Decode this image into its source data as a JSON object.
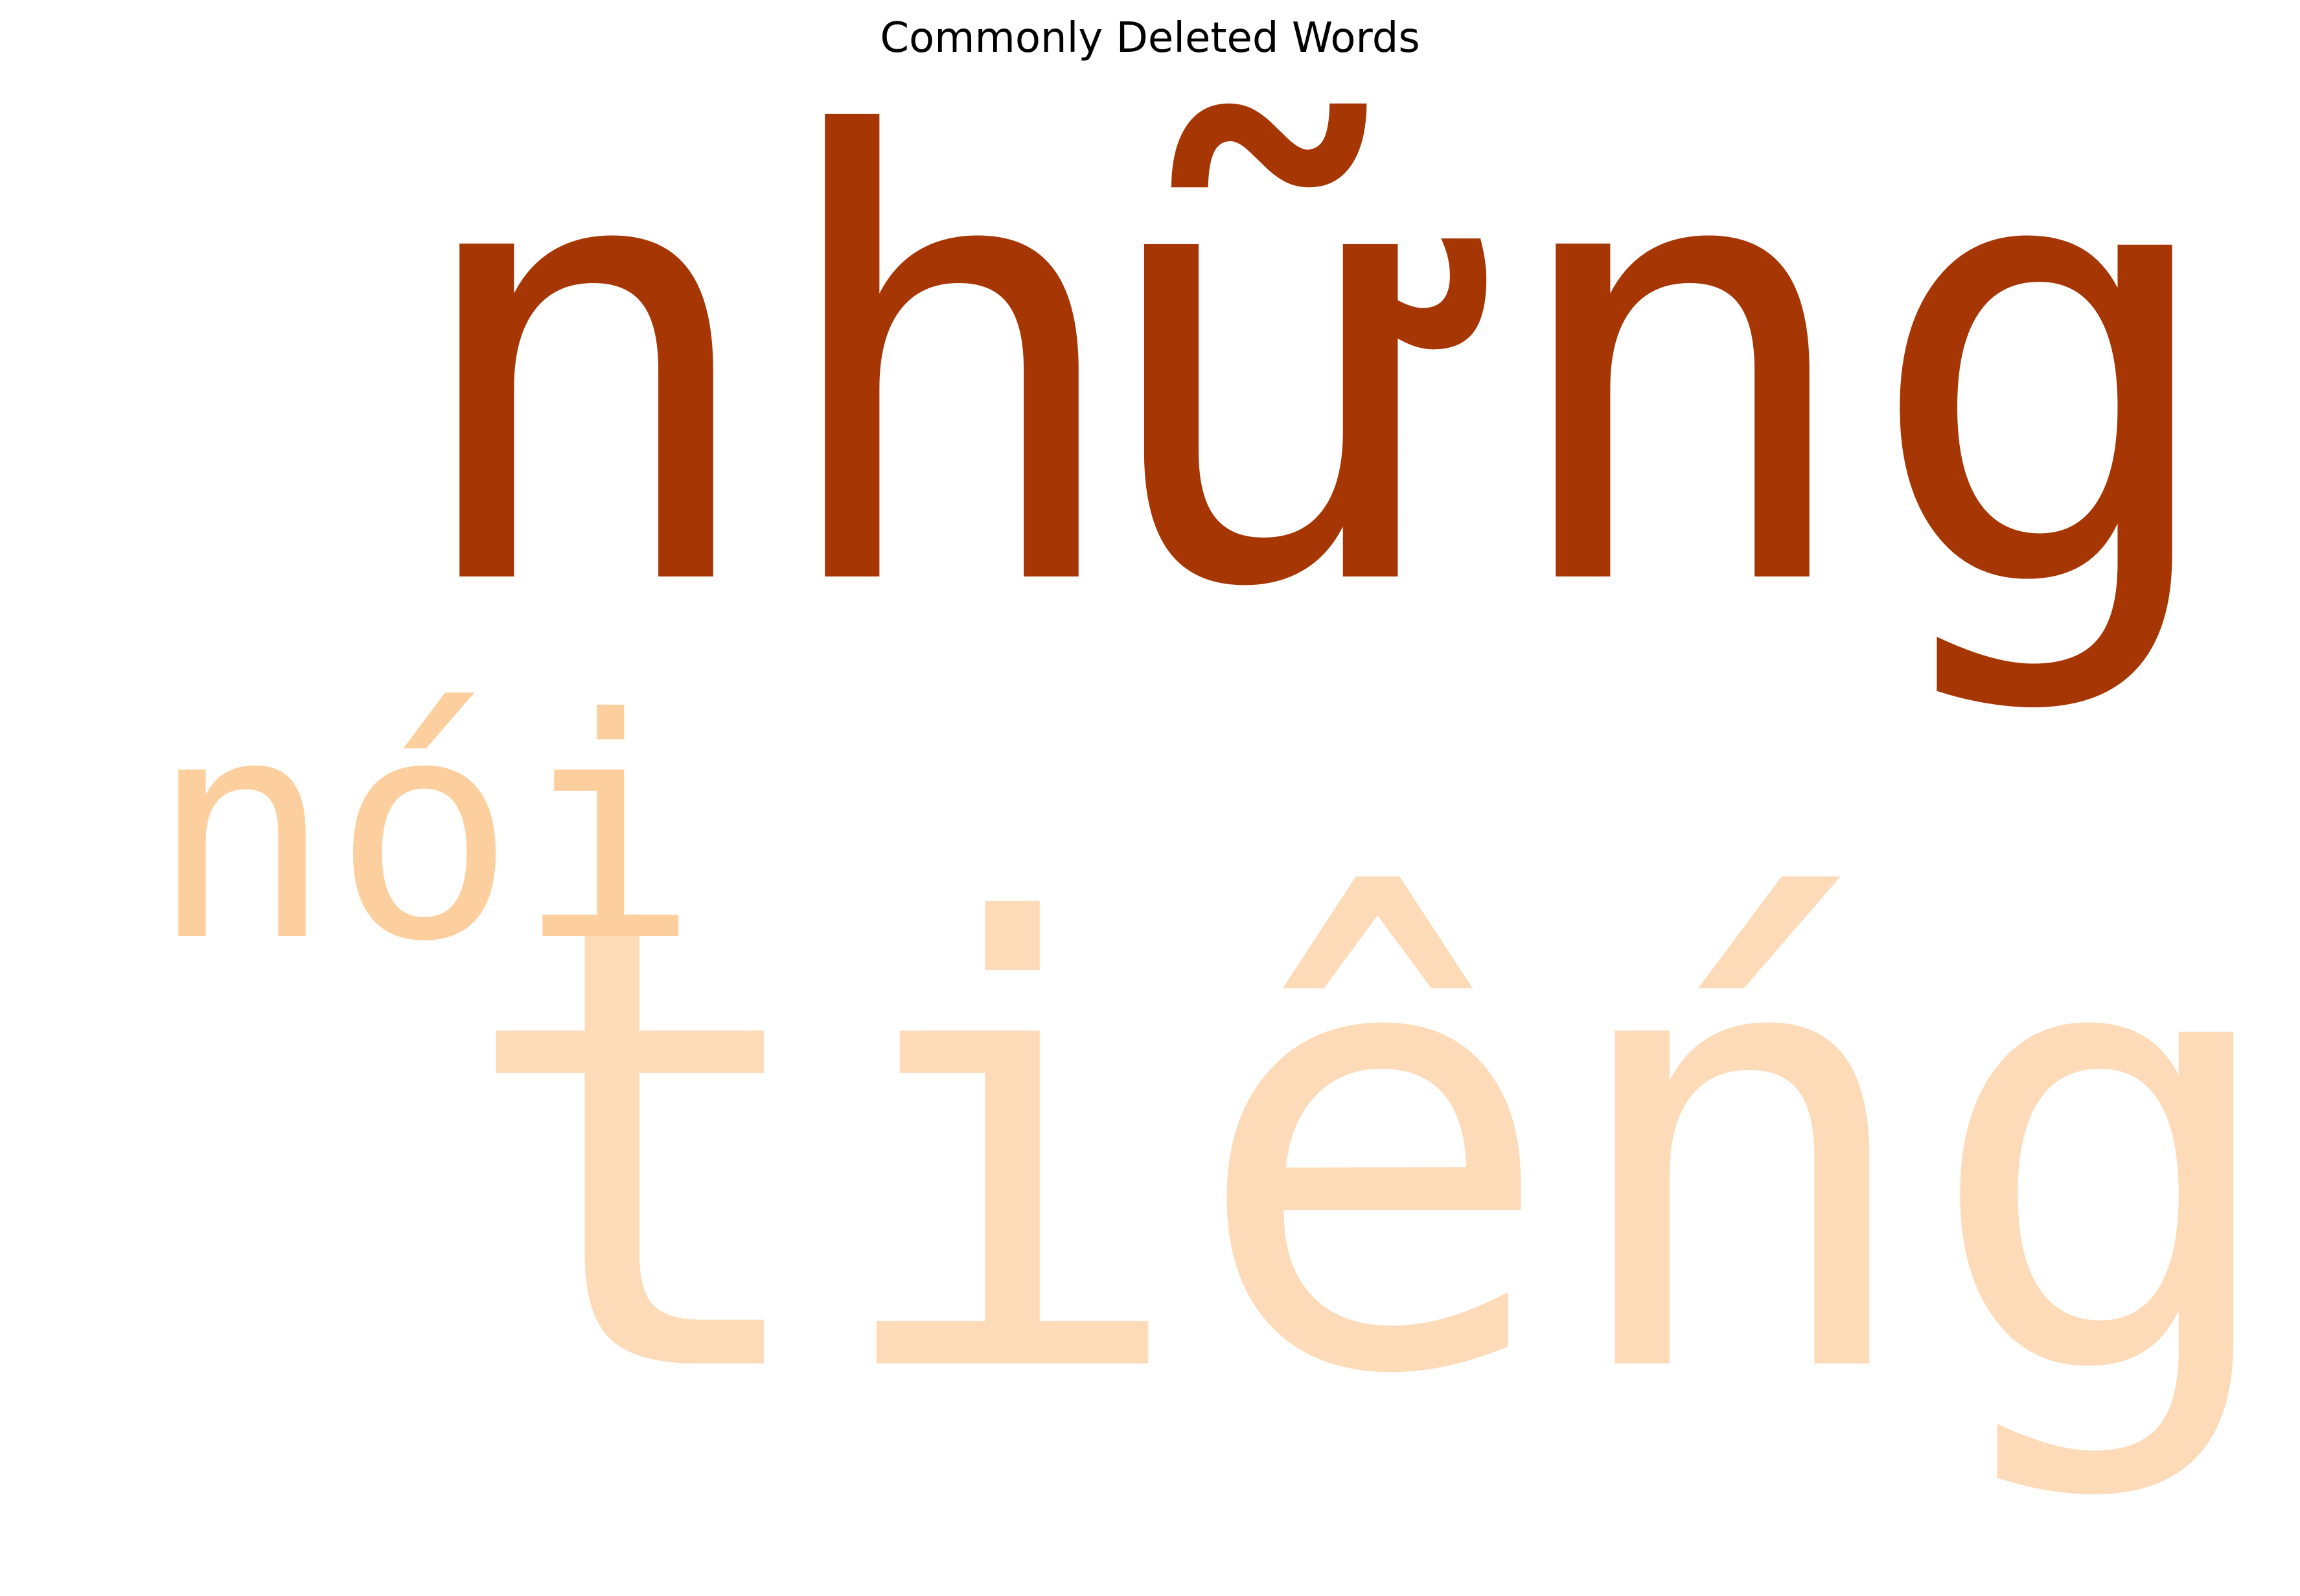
{
  "chart_data": {
    "type": "wordcloud",
    "title": "Commonly Deleted Words",
    "colormap": "Oranges",
    "words": [
      {
        "text": "những",
        "weight": 1.0,
        "color": "#a63603"
      },
      {
        "text": "tiếng",
        "weight": 1.0,
        "color": "#fddbb8"
      },
      {
        "text": "nói",
        "weight": 0.47,
        "color": "#fdcf9e"
      }
    ]
  }
}
